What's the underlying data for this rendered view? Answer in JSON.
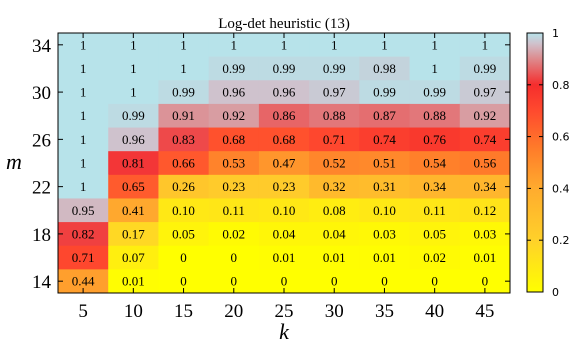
{
  "chart_data": {
    "type": "heatmap",
    "title": "Log-det heuristic (13)",
    "xlabel": "k",
    "ylabel": "m",
    "x_categories": [
      "5",
      "10",
      "15",
      "20",
      "25",
      "30",
      "35",
      "40",
      "45"
    ],
    "y_categories": [
      "34",
      "32",
      "30",
      "28",
      "26",
      "24",
      "22",
      "20",
      "18",
      "16",
      "14"
    ],
    "y_tick_labels": [
      "34",
      "30",
      "26",
      "22",
      "18",
      "14"
    ],
    "cell_labels": [
      [
        "1",
        "1",
        "1",
        "1",
        "1",
        "1",
        "1",
        "1",
        "1"
      ],
      [
        "1",
        "1",
        "1",
        "0.99",
        "0.99",
        "0.99",
        "0.98",
        "1",
        "0.99"
      ],
      [
        "1",
        "1",
        "0.99",
        "0.96",
        "0.96",
        "0.97",
        "0.99",
        "0.99",
        "0.97"
      ],
      [
        "1",
        "0.99",
        "0.91",
        "0.92",
        "0.86",
        "0.88",
        "0.87",
        "0.88",
        "0.92"
      ],
      [
        "1",
        "0.96",
        "0.83",
        "0.68",
        "0.68",
        "0.71",
        "0.74",
        "0.76",
        "0.74"
      ],
      [
        "1",
        "0.81",
        "0.66",
        "0.53",
        "0.47",
        "0.52",
        "0.51",
        "0.54",
        "0.56"
      ],
      [
        "1",
        "0.65",
        "0.26",
        "0.23",
        "0.23",
        "0.32",
        "0.31",
        "0.34",
        "0.34"
      ],
      [
        "0.95",
        "0.41",
        "0.10",
        "0.11",
        "0.10",
        "0.08",
        "0.10",
        "0.11",
        "0.12"
      ],
      [
        "0.82",
        "0.17",
        "0.05",
        "0.02",
        "0.04",
        "0.04",
        "0.03",
        "0.05",
        "0.03"
      ],
      [
        "0.71",
        "0.07",
        "0",
        "0",
        "0.01",
        "0.01",
        "0.01",
        "0.02",
        "0.01"
      ],
      [
        "0.44",
        "0.01",
        "0",
        "0",
        "0",
        "0",
        "0",
        "0",
        "0"
      ]
    ],
    "colorbar": {
      "range": [
        0,
        1
      ],
      "tick_labels": [
        "0",
        "0.2",
        "0.4",
        "0.6",
        "0.8",
        "1"
      ],
      "stops": [
        {
          "value": 0.0,
          "color": "#ffff00"
        },
        {
          "value": 0.2,
          "color": "#ffd12a"
        },
        {
          "value": 0.4,
          "color": "#ffab2e"
        },
        {
          "value": 0.55,
          "color": "#ff7d2a"
        },
        {
          "value": 0.7,
          "color": "#ff4a2e"
        },
        {
          "value": 0.8,
          "color": "#f52d2d"
        },
        {
          "value": 0.9,
          "color": "#dd8a8d"
        },
        {
          "value": 0.96,
          "color": "#cfc2cd"
        },
        {
          "value": 1.0,
          "color": "#b7e3ea"
        }
      ]
    },
    "grid": false
  }
}
